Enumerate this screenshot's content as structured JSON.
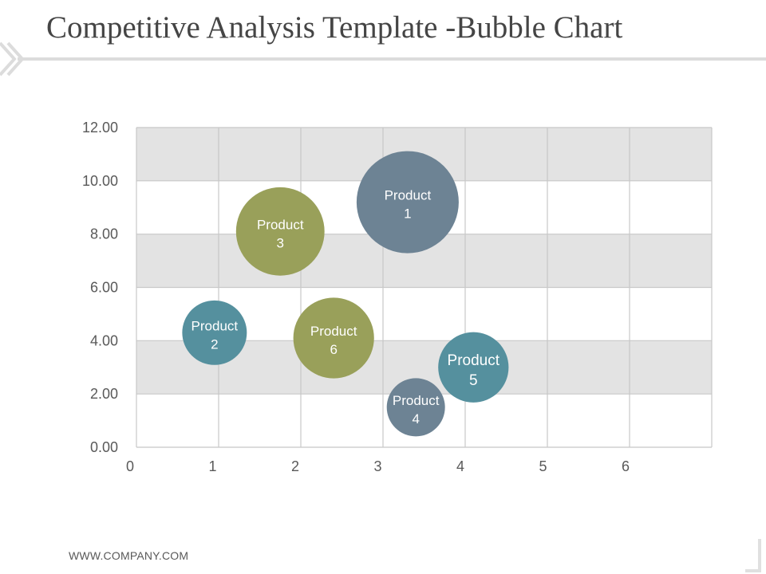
{
  "slide": {
    "title": "Competitive Analysis Template -Bubble Chart",
    "footer": "WWW.COMPANY.COM"
  },
  "colors": {
    "grid_band": "#e3e3e3",
    "grid_line": "#c8c8c8",
    "slate": "#6d8394",
    "olive": "#99a05a",
    "teal": "#55909e"
  },
  "chart_data": {
    "type": "bubble",
    "title": "",
    "xlabel": "",
    "ylabel": "",
    "xlim": [
      0,
      7
    ],
    "ylim": [
      0,
      12
    ],
    "x_ticks": [
      "0",
      "1",
      "2",
      "3",
      "4",
      "5",
      "6"
    ],
    "y_ticks": [
      "0.00",
      "2.00",
      "4.00",
      "6.00",
      "8.00",
      "10.00",
      "12.00"
    ],
    "points": [
      {
        "name": "Product 1",
        "line1": "Product",
        "line2": "1",
        "x": 3.3,
        "y": 9.2,
        "size": 4.0,
        "color": "#6d8394"
      },
      {
        "name": "Product 2",
        "line1": "Product",
        "line2": "2",
        "x": 0.95,
        "y": 4.3,
        "size": 1.6,
        "color": "#55909e"
      },
      {
        "name": "Product 3",
        "line1": "Product",
        "line2": "3",
        "x": 1.75,
        "y": 8.1,
        "size": 3.0,
        "color": "#99a05a"
      },
      {
        "name": "Product 4",
        "line1": "Product",
        "line2": "4",
        "x": 3.4,
        "y": 1.5,
        "size": 1.3,
        "color": "#6d8394"
      },
      {
        "name": "Product 5",
        "line1": "Product",
        "line2": "5",
        "x": 4.1,
        "y": 3.0,
        "size": 1.9,
        "color": "#55909e"
      },
      {
        "name": "Product 6",
        "line1": "Product",
        "line2": "6",
        "x": 2.4,
        "y": 4.1,
        "size": 2.5,
        "color": "#99a05a"
      }
    ]
  }
}
